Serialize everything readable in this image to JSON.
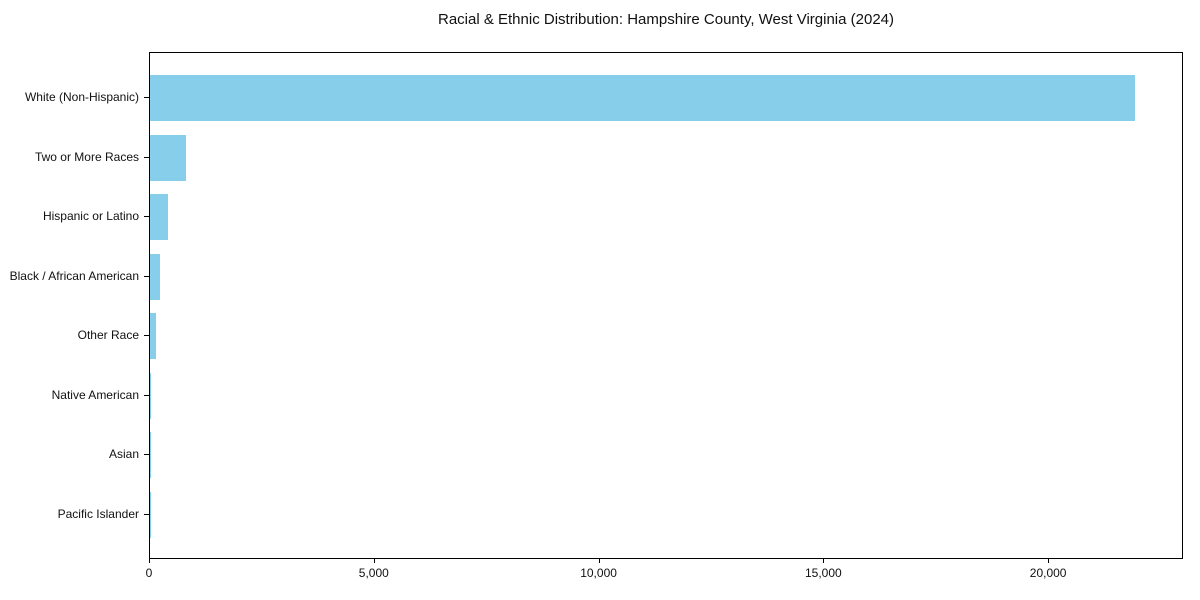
{
  "chart_data": {
    "type": "bar",
    "orientation": "horizontal",
    "title": "Racial & Ethnic Distribution: Hampshire County, West Virginia (2024)",
    "categories": [
      "White (Non-Hispanic)",
      "Two or More Races",
      "Hispanic or Latino",
      "Black / African American",
      "Other Race",
      "Native American",
      "Asian",
      "Pacific Islander"
    ],
    "values": [
      21900,
      800,
      400,
      220,
      140,
      20,
      15,
      5
    ],
    "bar_color": "#87CEEB",
    "xlim": [
      0,
      23000
    ],
    "x_ticks": [
      {
        "value": 0,
        "label": "0"
      },
      {
        "value": 5000,
        "label": "5,000"
      },
      {
        "value": 10000,
        "label": "10,000"
      },
      {
        "value": 15000,
        "label": "15,000"
      },
      {
        "value": 20000,
        "label": "20,000"
      }
    ],
    "xlabel": "",
    "ylabel": "",
    "grid": false,
    "legend": null,
    "categories_order": "largest-at-top"
  }
}
